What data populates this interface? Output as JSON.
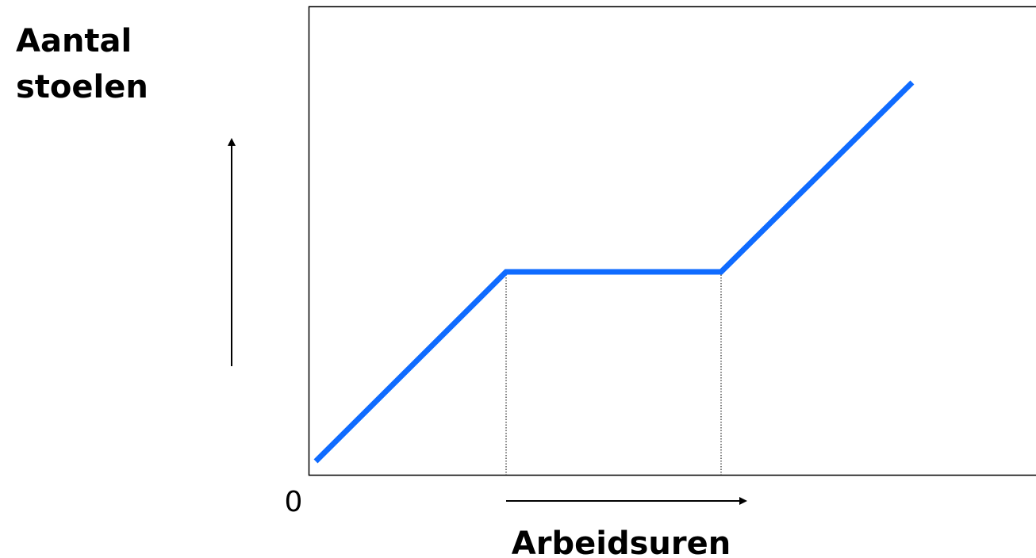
{
  "y_axis_label": [
    "Aantal",
    "stoelen"
  ],
  "x_axis_label": "Arbeidsuren",
  "origin_label": "0"
}
